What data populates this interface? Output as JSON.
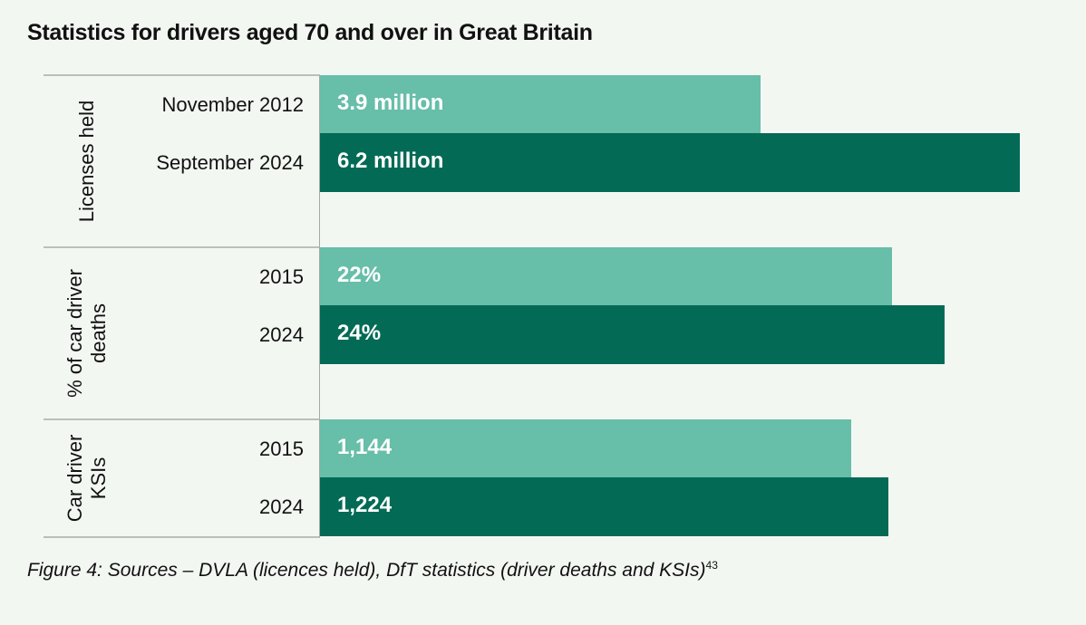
{
  "chart_data": {
    "type": "bar",
    "orientation": "horizontal",
    "title": "Statistics for drivers aged 70 and over in Great Britain",
    "caption": "Figure 4: Sources – DVLA (licences held), DfT statistics (driver deaths and KSIs)",
    "caption_superscript": "43",
    "colors": {
      "light": "#67bea9",
      "dark": "#036a55"
    },
    "groups": [
      {
        "label": "Licenses held",
        "max": 6.2,
        "bars": [
          {
            "category": "November  2012",
            "value": 3.9,
            "label": "3.9 million",
            "shade": "light"
          },
          {
            "category": "September 2024",
            "value": 6.2,
            "label": "6.2 million",
            "shade": "dark"
          }
        ]
      },
      {
        "label": "% of car driver deaths",
        "label_lines": [
          "% of car driver",
          "deaths"
        ],
        "max": 26.9,
        "bars": [
          {
            "category": "2015",
            "value": 22,
            "label": "22%",
            "shade": "light"
          },
          {
            "category": "2024",
            "value": 24,
            "label": "24%",
            "shade": "dark"
          }
        ]
      },
      {
        "label": "Car driver KSIs",
        "label_lines": [
          "Car driver",
          "KSIs"
        ],
        "max": 1508,
        "bars": [
          {
            "category": "2015",
            "value": 1144,
            "label": "1,144",
            "shade": "light"
          },
          {
            "category": "2024",
            "value": 1224,
            "label": "1,224",
            "shade": "dark"
          }
        ]
      }
    ]
  }
}
